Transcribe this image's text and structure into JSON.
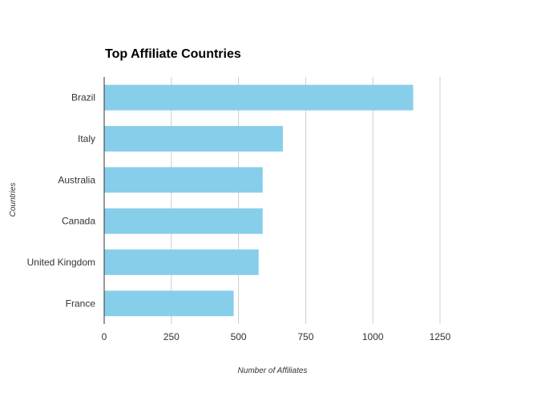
{
  "chart_data": {
    "type": "bar",
    "orientation": "horizontal",
    "title": "Top Affiliate Countries",
    "xlabel": "Number of Affiliates",
    "ylabel": "Countries",
    "categories": [
      "Brazil",
      "Italy",
      "Australia",
      "Canada",
      "United Kingdom",
      "France"
    ],
    "values": [
      1150,
      665,
      590,
      590,
      575,
      482
    ],
    "xlim": [
      0,
      1250
    ],
    "xticks": [
      "0",
      "250",
      "500",
      "750",
      "1000",
      "1250"
    ],
    "grid": true,
    "bar_color": "#87ceeb",
    "grid_color": "#cccccc",
    "axis_color": "#333333"
  }
}
